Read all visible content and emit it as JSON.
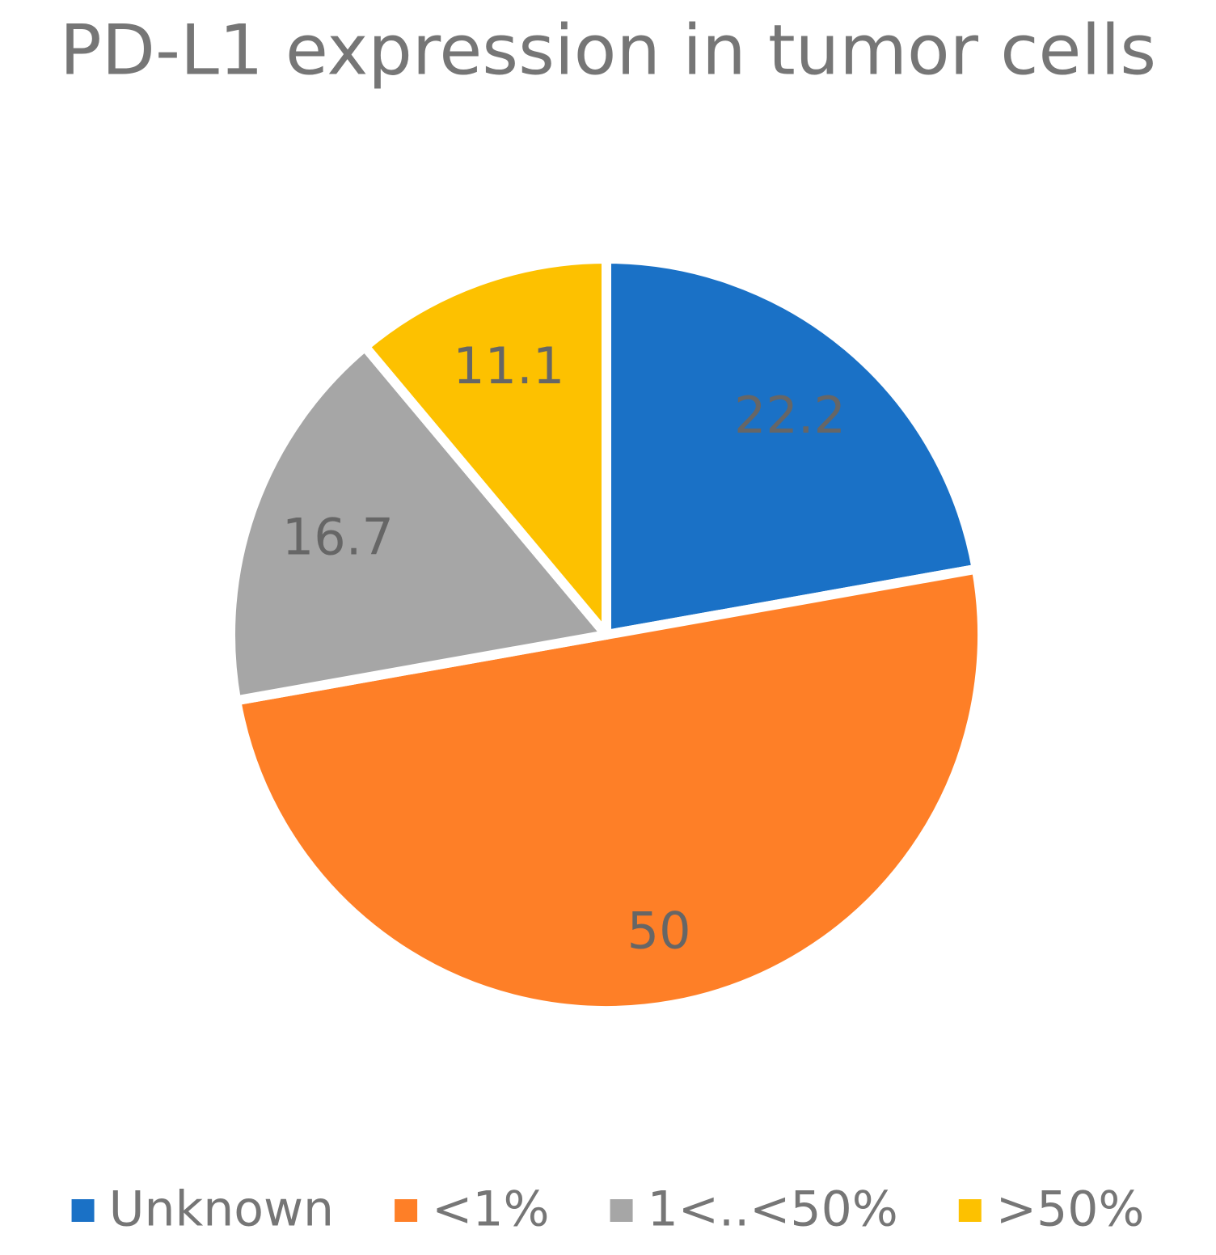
{
  "chart_data": {
    "type": "pie",
    "title": "PD-L1 expression in tumor cells",
    "categories": [
      "Unknown",
      "<1%",
      "1<..<50%",
      ">50%"
    ],
    "values": [
      22.2,
      50,
      16.7,
      11.1
    ],
    "colors": [
      "#1a71c6",
      "#fe7f27",
      "#a6a6a6",
      "#fdc100"
    ],
    "legend": "bottom"
  }
}
